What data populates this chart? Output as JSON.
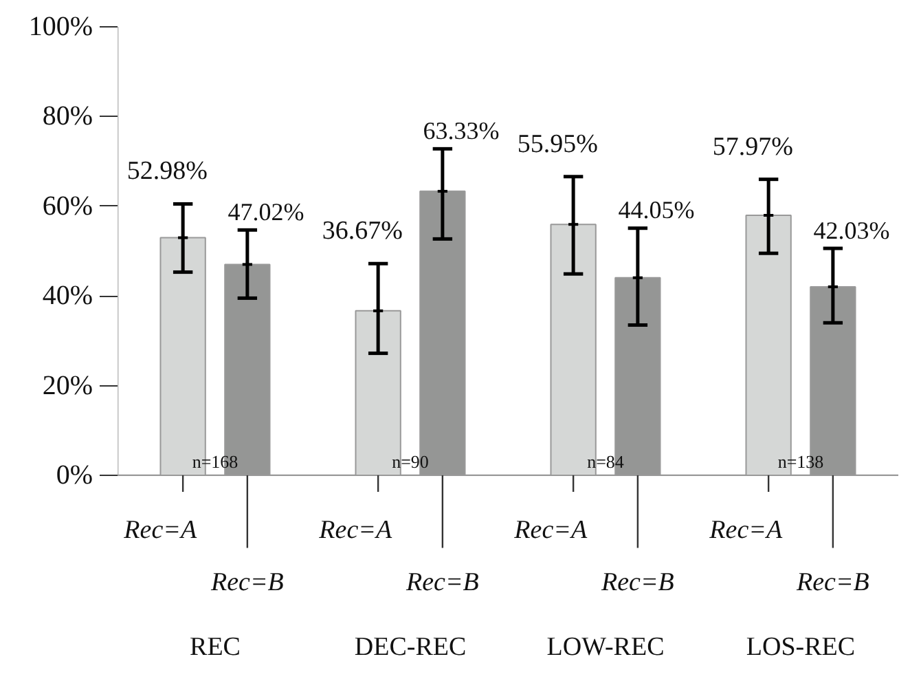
{
  "chart_data": {
    "type": "bar",
    "categories": [
      "REC",
      "DEC-REC",
      "LOW-REC",
      "LOS-REC"
    ],
    "series": [
      {
        "name": "Rec=A",
        "color": "#d5d7d6",
        "values": [
          52.98,
          36.67,
          55.95,
          57.97
        ],
        "errors": [
          [
            45.3,
            60.5
          ],
          [
            27.2,
            47.2
          ],
          [
            44.9,
            66.6
          ],
          [
            49.5,
            66.0
          ]
        ],
        "value_labels": [
          "52.98%",
          "36.67%",
          "55.95%",
          "57.97%"
        ]
      },
      {
        "name": "Rec=B",
        "color": "#959695",
        "values": [
          47.02,
          63.33,
          44.05,
          42.03
        ],
        "errors": [
          [
            39.5,
            54.7
          ],
          [
            52.7,
            72.8
          ],
          [
            33.5,
            55.1
          ],
          [
            34.0,
            50.6
          ]
        ],
        "value_labels": [
          "47.02%",
          "63.33%",
          "44.05%",
          "42.03%"
        ]
      }
    ],
    "ylim": [
      0,
      100
    ],
    "yticks": [
      {
        "value": 0,
        "label": "0%"
      },
      {
        "value": 20,
        "label": "20%"
      },
      {
        "value": 40,
        "label": "40%"
      },
      {
        "value": 60,
        "label": "60%"
      },
      {
        "value": 80,
        "label": "80%"
      },
      {
        "value": 100,
        "label": "100%"
      }
    ],
    "annotations": [
      "n=168",
      "n=90",
      "n=84",
      "n=138"
    ]
  }
}
